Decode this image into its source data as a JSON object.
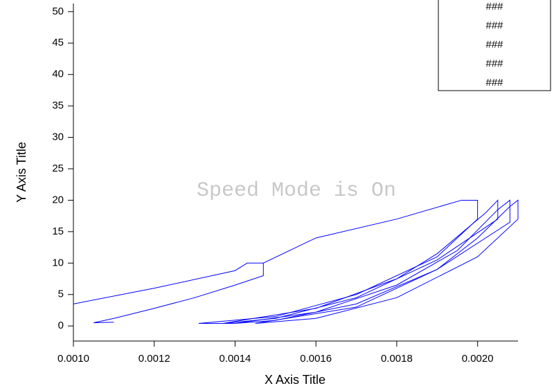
{
  "chart_data": {
    "type": "line",
    "x_label": "X Axis Title",
    "y_label": "Y Axis Title",
    "watermark": "Speed Mode is On",
    "xlim": [
      0.001,
      0.0021
    ],
    "ylim": [
      -2.4,
      51.3
    ],
    "xticks": [
      {
        "value": 0.001,
        "label": "0.0010"
      },
      {
        "value": 0.0012,
        "label": "0.0012"
      },
      {
        "value": 0.0014,
        "label": "0.0014"
      },
      {
        "value": 0.0016,
        "label": "0.0016"
      },
      {
        "value": 0.0018,
        "label": "0.0018"
      },
      {
        "value": 0.002,
        "label": "0.0020"
      }
    ],
    "yticks": [
      0,
      5,
      10,
      15,
      20,
      25,
      30,
      35,
      40,
      45,
      50
    ],
    "grid": false,
    "series": [
      {
        "name": "###",
        "color": "#0000ff",
        "x": [
          0.001,
          0.0012,
          0.0014,
          0.00143,
          0.00147,
          0.00147,
          0.0014,
          0.0013,
          0.0012,
          0.0011,
          0.00105,
          0.0011
        ],
        "values": [
          3.5,
          6,
          8.8,
          10,
          10,
          8,
          6.5,
          4.5,
          2.8,
          1.2,
          0.5,
          0.6
        ]
      },
      {
        "name": "###",
        "color": "#0000ff",
        "x": [
          0.00147,
          0.0016,
          0.0018,
          0.00196,
          0.002,
          0.002,
          0.0019,
          0.0017,
          0.0015,
          0.00131,
          0.0014
        ],
        "values": [
          10,
          14,
          17,
          20,
          20,
          17,
          11,
          5,
          1.5,
          0.4,
          0.4
        ]
      },
      {
        "name": "###",
        "color": "#0000ff",
        "x": [
          0.00137,
          0.0016,
          0.0018,
          0.0019,
          0.00202,
          0.00205,
          0.00205,
          0.0019,
          0.0017,
          0.0015,
          0.00137
        ],
        "values": [
          0.4,
          2.8,
          7.5,
          11.5,
          18,
          20,
          17,
          10.5,
          4.5,
          1.2,
          0.4
        ]
      },
      {
        "name": "###",
        "color": "#0000ff",
        "x": [
          0.0014,
          0.0016,
          0.0018,
          0.00195,
          0.00205,
          0.00208,
          0.00208,
          0.0019,
          0.0017,
          0.0015,
          0.0014
        ],
        "values": [
          0.4,
          2.2,
          6.5,
          12,
          18.5,
          20,
          16.5,
          9,
          3.5,
          0.9,
          0.4
        ]
      },
      {
        "name": "###",
        "color": "#0000ff",
        "x": [
          0.00145,
          0.0017,
          0.0019,
          0.002,
          0.00208,
          0.0021,
          0.0021,
          0.002,
          0.0018,
          0.0016,
          0.00145
        ],
        "values": [
          0.4,
          3,
          9,
          14,
          19,
          20,
          17,
          11,
          4.5,
          1.2,
          0.4
        ]
      }
    ]
  }
}
